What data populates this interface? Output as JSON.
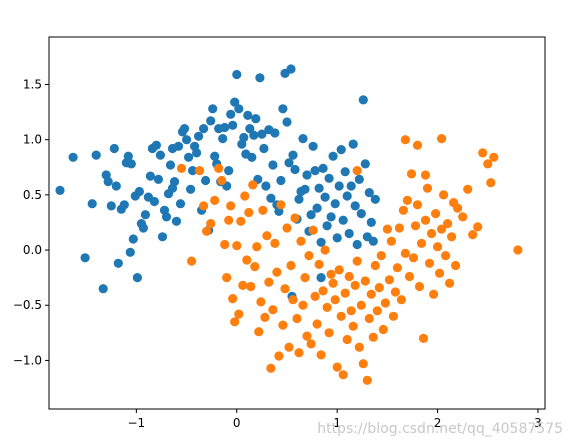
{
  "watermark": "https://blog.csdn.net/qq_40587575",
  "chart_data": {
    "type": "scatter",
    "title": "",
    "xlabel": "",
    "ylabel": "",
    "xlim": [
      -1.87,
      3.07
    ],
    "ylim": [
      -1.44,
      1.93
    ],
    "x_ticks": [
      -1,
      0,
      1,
      2,
      3
    ],
    "x_tick_labels": [
      "−1",
      "0",
      "1",
      "2",
      "3"
    ],
    "y_ticks": [
      -1.0,
      -0.5,
      0.0,
      0.5,
      1.0,
      1.5
    ],
    "y_tick_labels": [
      "−1.0",
      "−0.5",
      "0.0",
      "0.5",
      "1.0",
      "1.5"
    ],
    "grid": false,
    "legend": "none",
    "series": [
      {
        "color": "#1f77b4",
        "points": [
          [
            -1.76,
            0.54
          ],
          [
            -1.63,
            0.84
          ],
          [
            -1.51,
            -0.07
          ],
          [
            -1.4,
            0.86
          ],
          [
            -1.44,
            0.42
          ],
          [
            -1.33,
            -0.35
          ],
          [
            -1.3,
            0.68
          ],
          [
            -1.28,
            0.62
          ],
          [
            -1.25,
            0.4
          ],
          [
            -1.22,
            0.92
          ],
          [
            -1.2,
            0.58
          ],
          [
            -1.18,
            -0.12
          ],
          [
            -1.15,
            0.37
          ],
          [
            -1.12,
            0.41
          ],
          [
            -1.1,
            0.79
          ],
          [
            -1.08,
            0.85
          ],
          [
            -1.06,
            -0.02
          ],
          [
            -1.05,
            0.78
          ],
          [
            -1.03,
            0.1
          ],
          [
            -1.01,
            0.49
          ],
          [
            -0.99,
            -0.25
          ],
          [
            -0.97,
            0.53
          ],
          [
            -0.95,
            0.24
          ],
          [
            -0.93,
            0.2
          ],
          [
            -0.91,
            0.32
          ],
          [
            -0.88,
            0.48
          ],
          [
            -0.86,
            0.67
          ],
          [
            -0.84,
            0.92
          ],
          [
            -0.82,
            0.44
          ],
          [
            -0.8,
            0.95
          ],
          [
            -0.78,
            0.64
          ],
          [
            -0.76,
            0.86
          ],
          [
            -0.74,
            0.12
          ],
          [
            -0.72,
            0.36
          ],
          [
            -0.7,
            0.3
          ],
          [
            -0.68,
            0.51
          ],
          [
            -0.66,
            0.77
          ],
          [
            -0.64,
            0.92
          ],
          [
            -0.62,
            0.62
          ],
          [
            -0.6,
            0.26
          ],
          [
            -0.58,
            0.94
          ],
          [
            -0.56,
            0.42
          ],
          [
            -0.54,
            1.07
          ],
          [
            -0.52,
            1.1
          ],
          [
            -0.5,
            1.0
          ],
          [
            -0.48,
            0.84
          ],
          [
            -0.46,
            0.55
          ],
          [
            -0.44,
            0.72
          ],
          [
            -0.42,
            0.94
          ],
          [
            -0.4,
            0.88
          ],
          [
            -0.38,
            1.03
          ],
          [
            -0.35,
            0.36
          ],
          [
            -0.33,
            1.1
          ],
          [
            -0.31,
            0.63
          ],
          [
            -0.28,
            0.18
          ],
          [
            -0.26,
            1.17
          ],
          [
            -0.24,
            1.28
          ],
          [
            -0.22,
            0.85
          ],
          [
            -0.2,
            0.78
          ],
          [
            -0.18,
            1.1
          ],
          [
            -0.16,
            0.62
          ],
          [
            -0.14,
            1.01
          ],
          [
            -0.12,
            1.11
          ],
          [
            -0.1,
            0.58
          ],
          [
            -0.08,
            0.72
          ],
          [
            -0.06,
            1.23
          ],
          [
            -0.04,
            1.13
          ],
          [
            -0.02,
            1.34
          ],
          [
            0.0,
            1.59
          ],
          [
            0.02,
            1.28
          ],
          [
            0.05,
            0.96
          ],
          [
            0.07,
            1.02
          ],
          [
            0.09,
            0.87
          ],
          [
            0.11,
            1.22
          ],
          [
            0.13,
            1.1
          ],
          [
            0.15,
            0.84
          ],
          [
            0.17,
            1.04
          ],
          [
            0.19,
            1.19
          ],
          [
            0.21,
            0.64
          ],
          [
            0.23,
            1.56
          ],
          [
            0.25,
            1.05
          ],
          [
            0.27,
            0.92
          ],
          [
            0.29,
            0.58
          ],
          [
            0.32,
            1.09
          ],
          [
            0.34,
            0.47
          ],
          [
            0.36,
            0.77
          ],
          [
            0.38,
            1.06
          ],
          [
            0.4,
            0.41
          ],
          [
            0.42,
            0.35
          ],
          [
            0.44,
            0.63
          ],
          [
            0.46,
            1.28
          ],
          [
            0.48,
            1.6
          ],
          [
            0.5,
            1.16
          ],
          [
            0.52,
            0.79
          ],
          [
            0.54,
            1.64
          ],
          [
            0.56,
            0.86
          ],
          [
            0.58,
            0.73
          ],
          [
            0.6,
            0.28
          ],
          [
            0.62,
            0.46
          ],
          [
            0.64,
            0.53
          ],
          [
            0.66,
            1.01
          ],
          [
            0.68,
            0.55
          ],
          [
            0.7,
            0.68
          ],
          [
            0.72,
            0.17
          ],
          [
            0.74,
            0.32
          ],
          [
            0.76,
            0.94
          ],
          [
            0.78,
            0.72
          ],
          [
            0.8,
            0.38
          ],
          [
            0.82,
            0.56
          ],
          [
            0.84,
            0.07
          ],
          [
            0.86,
            0.74
          ],
          [
            0.88,
            0.48
          ],
          [
            0.9,
            0.22
          ],
          [
            0.92,
            0.65
          ],
          [
            0.94,
            0.3
          ],
          [
            0.96,
            0.85
          ],
          [
            0.98,
            0.42
          ],
          [
            1.0,
            0.11
          ],
          [
            1.02,
            0.58
          ],
          [
            1.04,
            0.91
          ],
          [
            1.06,
            0.27
          ],
          [
            1.08,
            0.71
          ],
          [
            1.1,
            0.49
          ],
          [
            1.12,
            0.15
          ],
          [
            1.14,
            0.58
          ],
          [
            1.16,
            0.96
          ],
          [
            1.18,
            0.4
          ],
          [
            1.2,
            0.05
          ],
          [
            1.22,
            0.64
          ],
          [
            1.24,
            0.33
          ],
          [
            1.26,
            1.36
          ],
          [
            1.28,
            0.78
          ],
          [
            1.3,
            0.12
          ],
          [
            1.32,
            0.52
          ],
          [
            1.34,
            0.25
          ],
          [
            1.36,
            0.08
          ],
          [
            1.38,
            0.46
          ],
          [
            0.55,
            -0.42
          ],
          [
            0.84,
            -0.25
          ],
          [
            -0.64,
            0.56
          ]
        ]
      },
      {
        "color": "#ff7f0e",
        "points": [
          [
            -0.55,
            0.74
          ],
          [
            -0.45,
            -0.1
          ],
          [
            -0.37,
            0.72
          ],
          [
            -0.33,
            0.4
          ],
          [
            -0.3,
            0.17
          ],
          [
            -0.26,
            0.24
          ],
          [
            -0.22,
            0.45
          ],
          [
            -0.18,
            0.74
          ],
          [
            -0.15,
            0.63
          ],
          [
            -0.12,
            0.05
          ],
          [
            -0.1,
            -0.25
          ],
          [
            -0.08,
            0.27
          ],
          [
            -0.06,
            0.4
          ],
          [
            -0.04,
            -0.44
          ],
          [
            -0.02,
            -0.65
          ],
          [
            0.0,
            0.04
          ],
          [
            0.02,
            -0.58
          ],
          [
            0.04,
            0.26
          ],
          [
            0.06,
            -0.32
          ],
          [
            0.08,
            0.49
          ],
          [
            0.1,
            -0.09
          ],
          [
            0.12,
            0.34
          ],
          [
            0.14,
            -0.33
          ],
          [
            0.16,
            0.59
          ],
          [
            0.18,
            -0.15
          ],
          [
            0.2,
            0.03
          ],
          [
            0.22,
            -0.74
          ],
          [
            0.24,
            -0.47
          ],
          [
            0.26,
            0.36
          ],
          [
            0.28,
            -0.61
          ],
          [
            0.3,
            0.13
          ],
          [
            0.32,
            -0.29
          ],
          [
            0.34,
            -1.07
          ],
          [
            0.36,
            -0.54
          ],
          [
            0.38,
            0.06
          ],
          [
            0.4,
            -0.2
          ],
          [
            0.42,
            -0.96
          ],
          [
            0.44,
            0.41
          ],
          [
            0.46,
            -0.68
          ],
          [
            0.48,
            -0.35
          ],
          [
            0.5,
            0.2
          ],
          [
            0.52,
            -0.88
          ],
          [
            0.54,
            -0.14
          ],
          [
            0.56,
            -0.45
          ],
          [
            0.58,
            0.29
          ],
          [
            0.6,
            -0.62
          ],
          [
            0.62,
            -0.93
          ],
          [
            0.64,
            0.08
          ],
          [
            0.66,
            -0.5
          ],
          [
            0.68,
            -0.25
          ],
          [
            0.7,
            -0.78
          ],
          [
            0.72,
            -0.05
          ],
          [
            0.74,
            -0.85
          ],
          [
            0.76,
            0.18
          ],
          [
            0.78,
            -0.42
          ],
          [
            0.8,
            -0.67
          ],
          [
            0.82,
            -0.13
          ],
          [
            0.84,
            -0.95
          ],
          [
            0.86,
            -0.37
          ],
          [
            0.88,
            0.0
          ],
          [
            0.9,
            -0.52
          ],
          [
            0.92,
            -0.75
          ],
          [
            0.94,
            -0.22
          ],
          [
            0.96,
            -0.3
          ],
          [
            0.98,
            -0.45
          ],
          [
            1.0,
            -1.06
          ],
          [
            1.02,
            -0.18
          ],
          [
            1.04,
            -0.6
          ],
          [
            1.06,
            -1.13
          ],
          [
            1.08,
            -0.39
          ],
          [
            1.1,
            -0.81
          ],
          [
            1.12,
            -0.24
          ],
          [
            1.14,
            -0.55
          ],
          [
            1.16,
            -0.69
          ],
          [
            1.18,
            -0.32
          ],
          [
            1.2,
            -0.1
          ],
          [
            1.22,
            -0.88
          ],
          [
            1.24,
            -0.5
          ],
          [
            1.26,
            -1.03
          ],
          [
            1.28,
            -0.28
          ],
          [
            1.3,
            -1.18
          ],
          [
            1.32,
            -0.62
          ],
          [
            1.34,
            -0.4
          ],
          [
            1.36,
            -0.79
          ],
          [
            1.38,
            -0.14
          ],
          [
            1.4,
            -0.55
          ],
          [
            1.42,
            -0.34
          ],
          [
            1.44,
            -0.05
          ],
          [
            1.46,
            -0.72
          ],
          [
            1.48,
            -0.48
          ],
          [
            1.5,
            0.19
          ],
          [
            1.52,
            -0.27
          ],
          [
            1.54,
            0.08
          ],
          [
            1.56,
            -0.6
          ],
          [
            1.58,
            -0.38
          ],
          [
            1.6,
            -0.16
          ],
          [
            1.62,
            0.2
          ],
          [
            1.64,
            -0.45
          ],
          [
            1.66,
            0.36
          ],
          [
            1.68,
            -0.03
          ],
          [
            1.7,
            0.45
          ],
          [
            1.72,
            -0.24
          ],
          [
            1.74,
            0.69
          ],
          [
            1.76,
            -0.07
          ],
          [
            1.78,
            0.22
          ],
          [
            1.8,
            0.41
          ],
          [
            1.82,
            -0.33
          ],
          [
            1.84,
            0.06
          ],
          [
            1.86,
            -0.8
          ],
          [
            1.88,
            0.27
          ],
          [
            1.9,
            0.56
          ],
          [
            1.92,
            -0.12
          ],
          [
            1.94,
            0.15
          ],
          [
            1.96,
            -0.4
          ],
          [
            1.98,
            0.33
          ],
          [
            2.0,
            0.03
          ],
          [
            2.02,
            -0.21
          ],
          [
            2.04,
            0.19
          ],
          [
            2.06,
            0.5
          ],
          [
            2.08,
            -0.05
          ],
          [
            2.1,
            0.24
          ],
          [
            2.12,
            -0.3
          ],
          [
            2.14,
            0.12
          ],
          [
            2.16,
            0.43
          ],
          [
            2.18,
            -0.14
          ],
          [
            2.2,
            0.38
          ],
          [
            2.25,
            0.3
          ],
          [
            2.3,
            0.55
          ],
          [
            2.35,
            0.14
          ],
          [
            2.4,
            0.21
          ],
          [
            2.45,
            0.88
          ],
          [
            2.5,
            0.78
          ],
          [
            2.53,
            0.61
          ],
          [
            2.56,
            0.84
          ],
          [
            2.8,
            0.0
          ],
          [
            1.68,
            1.0
          ],
          [
            1.8,
            0.95
          ],
          [
            2.04,
            1.01
          ],
          [
            1.88,
            0.68
          ],
          [
            1.2,
            0.72
          ]
        ]
      }
    ]
  }
}
